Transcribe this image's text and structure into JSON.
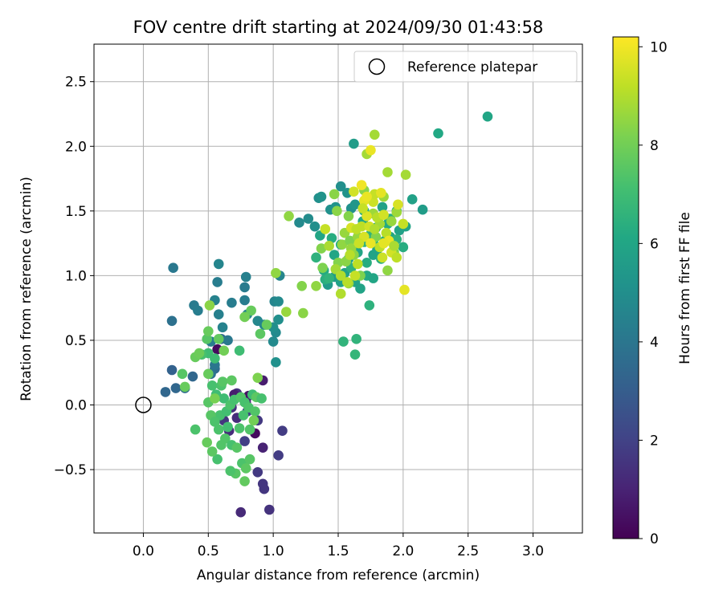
{
  "chart_data": {
    "type": "scatter",
    "title": "FOV centre drift starting at 2024/09/30 01:43:58",
    "xlabel": "Angular distance from reference (arcmin)",
    "ylabel": "Rotation from reference (arcmin)",
    "xlim": [
      -0.38,
      3.38
    ],
    "ylim": [
      -0.99,
      2.79
    ],
    "xticks": [
      "0.0",
      "0.5",
      "1.0",
      "1.5",
      "2.0",
      "2.5",
      "3.0"
    ],
    "xtick_values": [
      0,
      0.5,
      1.0,
      1.5,
      2.0,
      2.5,
      3.0
    ],
    "yticks": [
      "−0.5",
      "0.0",
      "0.5",
      "1.0",
      "1.5",
      "2.0",
      "2.5"
    ],
    "ytick_values": [
      -0.5,
      0,
      0.5,
      1.0,
      1.5,
      2.0,
      2.5
    ],
    "grid": true,
    "legend": {
      "position": "top-right",
      "label": "Reference platepar",
      "marker": "open-circle"
    },
    "reference_point": {
      "x": 0,
      "y": 0
    },
    "colorbar": {
      "label": "Hours from first FF file",
      "min": 0,
      "max": 10.2,
      "ticks": [
        "0",
        "2",
        "4",
        "6",
        "8",
        "10"
      ],
      "tick_values": [
        0,
        2,
        4,
        6,
        8,
        10
      ],
      "colormap": "viridis"
    },
    "points": [
      [
        0.75,
        -0.83,
        1.2
      ],
      [
        0.97,
        -0.81,
        1.5
      ],
      [
        0.93,
        -0.65,
        1.6
      ],
      [
        0.92,
        -0.61,
        1.6
      ],
      [
        0.88,
        -0.52,
        1.7
      ],
      [
        1.04,
        -0.39,
        1.8
      ],
      [
        0.92,
        -0.33,
        1.0
      ],
      [
        1.07,
        -0.2,
        1.8
      ],
      [
        0.81,
        0.07,
        0.5
      ],
      [
        0.92,
        0.19,
        0.8
      ],
      [
        0.79,
        0.02,
        1.0
      ],
      [
        0.68,
        -0.02,
        1.4
      ],
      [
        0.72,
        -0.1,
        1.3
      ],
      [
        0.86,
        -0.22,
        0.3
      ],
      [
        0.66,
        -0.2,
        1.3
      ],
      [
        0.72,
        0.09,
        1.5
      ],
      [
        0.57,
        0.43,
        0.3
      ],
      [
        0.8,
        -0.05,
        2.0
      ],
      [
        0.7,
        0.08,
        0.8
      ],
      [
        0.62,
        -0.12,
        1.6
      ],
      [
        0.88,
        -0.12,
        1.7
      ],
      [
        0.78,
        -0.28,
        1.9
      ],
      [
        0.17,
        0.1,
        3.4
      ],
      [
        0.25,
        0.13,
        3.4
      ],
      [
        0.22,
        0.27,
        3.2
      ],
      [
        0.38,
        0.22,
        3.4
      ],
      [
        0.32,
        0.13,
        3.6
      ],
      [
        0.55,
        0.28,
        3.6
      ],
      [
        0.52,
        0.24,
        3.9
      ],
      [
        0.55,
        0.31,
        4.0
      ],
      [
        0.6,
        0.51,
        3.5
      ],
      [
        0.65,
        0.5,
        4.1
      ],
      [
        0.52,
        0.49,
        4.3
      ],
      [
        0.61,
        0.6,
        4.5
      ],
      [
        0.58,
        0.7,
        4.4
      ],
      [
        0.55,
        0.81,
        4.5
      ],
      [
        0.68,
        0.79,
        4.3
      ],
      [
        0.78,
        0.81,
        4.3
      ],
      [
        0.8,
        0.7,
        4.6
      ],
      [
        0.78,
        0.91,
        4.2
      ],
      [
        0.79,
        0.99,
        4.4
      ],
      [
        0.88,
        0.65,
        4.7
      ],
      [
        0.93,
        0.62,
        4.6
      ],
      [
        0.22,
        0.65,
        3.8
      ],
      [
        0.23,
        1.06,
        4.1
      ],
      [
        0.57,
        0.95,
        4.3
      ],
      [
        0.58,
        1.09,
        4.6
      ],
      [
        1.0,
        0.49,
        4.8
      ],
      [
        1.02,
        0.56,
        4.8
      ],
      [
        1.0,
        0.6,
        5.0
      ],
      [
        1.01,
        0.8,
        4.6
      ],
      [
        1.04,
        0.8,
        4.8
      ],
      [
        1.04,
        0.66,
        5.0
      ],
      [
        1.05,
        1.0,
        4.6
      ],
      [
        1.02,
        0.33,
        5.1
      ],
      [
        0.39,
        0.77,
        4.2
      ],
      [
        0.42,
        0.73,
        4.3
      ],
      [
        1.2,
        1.41,
        4.8
      ],
      [
        1.27,
        1.44,
        4.9
      ],
      [
        1.32,
        1.38,
        5.0
      ],
      [
        1.35,
        1.6,
        5.0
      ],
      [
        1.37,
        1.61,
        5.2
      ],
      [
        1.44,
        1.51,
        5.1
      ],
      [
        1.48,
        1.53,
        5.2
      ],
      [
        1.52,
        1.69,
        5.0
      ],
      [
        1.57,
        1.64,
        5.2
      ],
      [
        1.6,
        1.52,
        5.1
      ],
      [
        1.63,
        1.55,
        5.3
      ],
      [
        1.62,
        2.02,
        5.6
      ],
      [
        1.42,
        0.93,
        5.5
      ],
      [
        1.47,
        0.99,
        5.6
      ],
      [
        1.52,
        0.95,
        5.8
      ],
      [
        1.55,
        1.02,
        5.8
      ],
      [
        1.63,
        0.95,
        5.9
      ],
      [
        1.67,
        0.9,
        5.9
      ],
      [
        1.72,
        1.0,
        6.1
      ],
      [
        1.77,
        0.98,
        6.0
      ],
      [
        1.77,
        1.16,
        5.9
      ],
      [
        1.8,
        1.2,
        5.9
      ],
      [
        1.83,
        1.13,
        6.3
      ],
      [
        1.86,
        1.27,
        6.2
      ],
      [
        1.9,
        1.3,
        6.0
      ],
      [
        1.97,
        1.35,
        5.8
      ],
      [
        2.02,
        1.38,
        5.9
      ],
      [
        2.07,
        1.59,
        5.8
      ],
      [
        2.15,
        1.51,
        5.6
      ],
      [
        1.84,
        1.53,
        5.8
      ],
      [
        1.88,
        1.4,
        6.2
      ],
      [
        1.9,
        1.44,
        6.4
      ],
      [
        1.95,
        1.5,
        6.2
      ],
      [
        2.0,
        1.22,
        6.3
      ],
      [
        1.95,
        1.28,
        6.5
      ],
      [
        1.7,
        1.5,
        6.3
      ],
      [
        1.69,
        1.42,
        6.1
      ],
      [
        1.65,
        1.18,
        6.0
      ],
      [
        1.58,
        1.13,
        5.9
      ],
      [
        1.52,
        1.24,
        6.1
      ],
      [
        1.6,
        1.06,
        6.5
      ],
      [
        1.72,
        1.1,
        6.3
      ],
      [
        1.77,
        1.26,
        6.4
      ],
      [
        1.75,
        1.32,
        6.6
      ],
      [
        1.7,
        1.26,
        6.5
      ],
      [
        1.47,
        1.16,
        6.0
      ],
      [
        1.36,
        1.31,
        6.0
      ],
      [
        1.45,
        1.29,
        6.3
      ],
      [
        1.39,
        1.04,
        6.2
      ],
      [
        1.33,
        1.14,
        6.5
      ],
      [
        1.4,
        0.97,
        6.4
      ],
      [
        1.43,
        0.98,
        6.6
      ],
      [
        2.27,
        2.1,
        6.1
      ],
      [
        2.65,
        2.23,
        6.0
      ],
      [
        1.74,
        0.77,
        6.5
      ],
      [
        1.64,
        0.51,
        6.6
      ],
      [
        1.63,
        0.39,
        6.7
      ],
      [
        1.54,
        0.49,
        6.6
      ],
      [
        1.79,
        1.37,
        5.9
      ],
      [
        0.5,
        0.4,
        7.0
      ],
      [
        0.55,
        0.36,
        7.0
      ],
      [
        0.45,
        0.39,
        7.2
      ],
      [
        0.49,
        0.51,
        7.5
      ],
      [
        0.74,
        0.42,
        7.0
      ],
      [
        0.83,
        0.73,
        7.8
      ],
      [
        0.9,
        0.55,
        7.6
      ],
      [
        0.95,
        0.62,
        7.8
      ],
      [
        0.53,
        0.15,
        7.2
      ],
      [
        0.56,
        0.08,
        7.0
      ],
      [
        0.6,
        0.15,
        7.3
      ],
      [
        0.62,
        0.05,
        7.0
      ],
      [
        0.59,
        -0.08,
        7.2
      ],
      [
        0.64,
        -0.05,
        7.1
      ],
      [
        0.67,
        0.0,
        7.3
      ],
      [
        0.7,
        0.04,
        7.2
      ],
      [
        0.75,
        0.06,
        7.4
      ],
      [
        0.78,
        0.02,
        7.2
      ],
      [
        0.81,
        -0.02,
        7.3
      ],
      [
        0.84,
        0.08,
        7.0
      ],
      [
        0.5,
        0.02,
        7.5
      ],
      [
        0.52,
        -0.08,
        7.5
      ],
      [
        0.55,
        -0.13,
        7.3
      ],
      [
        0.58,
        -0.19,
        7.3
      ],
      [
        0.63,
        -0.26,
        7.4
      ],
      [
        0.68,
        -0.31,
        7.2
      ],
      [
        0.72,
        -0.33,
        7.5
      ],
      [
        0.76,
        -0.45,
        7.3
      ],
      [
        0.79,
        -0.49,
        7.6
      ],
      [
        0.82,
        -0.42,
        7.5
      ],
      [
        0.78,
        -0.59,
        7.7
      ],
      [
        0.71,
        -0.53,
        7.5
      ],
      [
        0.67,
        -0.51,
        7.3
      ],
      [
        0.57,
        -0.42,
        7.2
      ],
      [
        0.53,
        -0.36,
        7.6
      ],
      [
        0.6,
        -0.31,
        7.4
      ],
      [
        0.65,
        -0.17,
        7.1
      ],
      [
        0.74,
        -0.18,
        7.3
      ],
      [
        0.77,
        -0.08,
        7.2
      ],
      [
        0.82,
        -0.19,
        7.4
      ],
      [
        0.86,
        -0.05,
        7.4
      ],
      [
        0.87,
        0.06,
        7.6
      ],
      [
        0.91,
        0.05,
        7.2
      ],
      [
        0.49,
        -0.29,
        7.8
      ],
      [
        0.5,
        0.57,
        7.8
      ],
      [
        0.4,
        0.37,
        7.8
      ],
      [
        0.3,
        0.24,
        7.5
      ],
      [
        0.4,
        -0.19,
        7.3
      ],
      [
        0.51,
        0.77,
        8.4
      ],
      [
        0.43,
        0.4,
        7.9
      ],
      [
        0.78,
        0.68,
        8.0
      ],
      [
        0.58,
        0.51,
        7.7
      ],
      [
        0.62,
        0.42,
        8.0
      ],
      [
        0.32,
        0.14,
        7.8
      ],
      [
        0.61,
        0.18,
        7.5
      ],
      [
        0.68,
        0.19,
        7.6
      ],
      [
        0.5,
        0.24,
        7.8
      ],
      [
        0.55,
        0.05,
        8.1
      ],
      [
        0.85,
        -0.12,
        8.0
      ],
      [
        0.88,
        0.21,
        8.2
      ],
      [
        1.02,
        1.02,
        8.5
      ],
      [
        1.1,
        0.72,
        8.6
      ],
      [
        1.12,
        1.46,
        8.5
      ],
      [
        1.22,
        0.92,
        8.3
      ],
      [
        1.23,
        0.71,
        8.4
      ],
      [
        1.33,
        0.92,
        8.5
      ],
      [
        1.38,
        1.06,
        8.2
      ],
      [
        1.37,
        1.21,
        8.3
      ],
      [
        1.47,
        1.63,
        8.4
      ],
      [
        1.49,
        1.5,
        8.4
      ],
      [
        1.5,
        1.1,
        8.3
      ],
      [
        1.53,
        1.24,
        8.5
      ],
      [
        1.55,
        1.33,
        8.6
      ],
      [
        1.58,
        1.46,
        8.3
      ],
      [
        1.59,
        1.27,
        8.2
      ],
      [
        1.62,
        1.16,
        8.4
      ],
      [
        1.65,
        1.3,
        8.6
      ],
      [
        1.67,
        1.0,
        8.2
      ],
      [
        1.7,
        1.66,
        8.4
      ],
      [
        1.72,
        1.94,
        8.8
      ],
      [
        1.77,
        1.48,
        8.7
      ],
      [
        1.79,
        1.3,
        8.3
      ],
      [
        1.82,
        1.4,
        8.8
      ],
      [
        1.85,
        1.61,
        8.7
      ],
      [
        1.88,
        1.8,
        8.8
      ],
      [
        1.91,
        1.42,
        8.6
      ],
      [
        1.93,
        1.18,
        8.3
      ],
      [
        1.95,
        1.49,
        8.7
      ],
      [
        2.02,
        1.78,
        8.8
      ],
      [
        1.88,
        1.04,
        8.5
      ],
      [
        1.78,
        2.09,
        8.8
      ],
      [
        1.6,
        1.21,
        8.6
      ],
      [
        1.56,
        1.11,
        8.4
      ],
      [
        1.58,
        0.94,
        8.7
      ],
      [
        1.52,
        0.86,
        9.0
      ],
      [
        1.4,
        1.36,
        9.3
      ],
      [
        1.43,
        1.23,
        8.9
      ],
      [
        1.48,
        1.05,
        8.8
      ],
      [
        1.52,
        1.0,
        9.0
      ],
      [
        1.6,
        1.37,
        9.6
      ],
      [
        1.62,
        1.65,
        9.5
      ],
      [
        1.68,
        1.38,
        9.2
      ],
      [
        1.72,
        1.46,
        9.7
      ],
      [
        1.75,
        1.97,
        9.9
      ],
      [
        1.77,
        1.57,
        9.4
      ],
      [
        1.78,
        1.63,
        9.3
      ],
      [
        1.8,
        1.45,
        9.1
      ],
      [
        1.82,
        1.22,
        9.2
      ],
      [
        1.83,
        1.64,
        9.8
      ],
      [
        1.85,
        1.47,
        9.5
      ],
      [
        1.87,
        1.33,
        9.1
      ],
      [
        1.89,
        1.27,
        9.9
      ],
      [
        1.91,
        1.18,
        9.5
      ],
      [
        1.95,
        1.14,
        9.2
      ],
      [
        2.0,
        1.4,
        9.3
      ],
      [
        2.01,
        0.89,
        9.8
      ],
      [
        1.96,
        1.55,
        9.6
      ],
      [
        1.7,
        1.58,
        9.8
      ],
      [
        1.65,
        1.09,
        9.2
      ],
      [
        1.7,
        1.3,
        9.6
      ],
      [
        1.74,
        1.38,
        9.5
      ],
      [
        1.66,
        1.25,
        9.4
      ],
      [
        1.75,
        1.25,
        9.9
      ],
      [
        1.85,
        1.25,
        9.8
      ],
      [
        1.78,
        1.36,
        9.0
      ],
      [
        1.93,
        1.23,
        8.9
      ],
      [
        1.68,
        1.7,
        10.0
      ],
      [
        1.72,
        1.61,
        9.9
      ],
      [
        1.63,
        1.0,
        9.3
      ],
      [
        1.57,
        0.95,
        9.1
      ],
      [
        1.59,
        1.16,
        9.1
      ],
      [
        1.64,
        1.36,
        9.2
      ],
      [
        1.69,
        1.52,
        9.3
      ],
      [
        1.84,
        1.14,
        9.4
      ]
    ]
  }
}
